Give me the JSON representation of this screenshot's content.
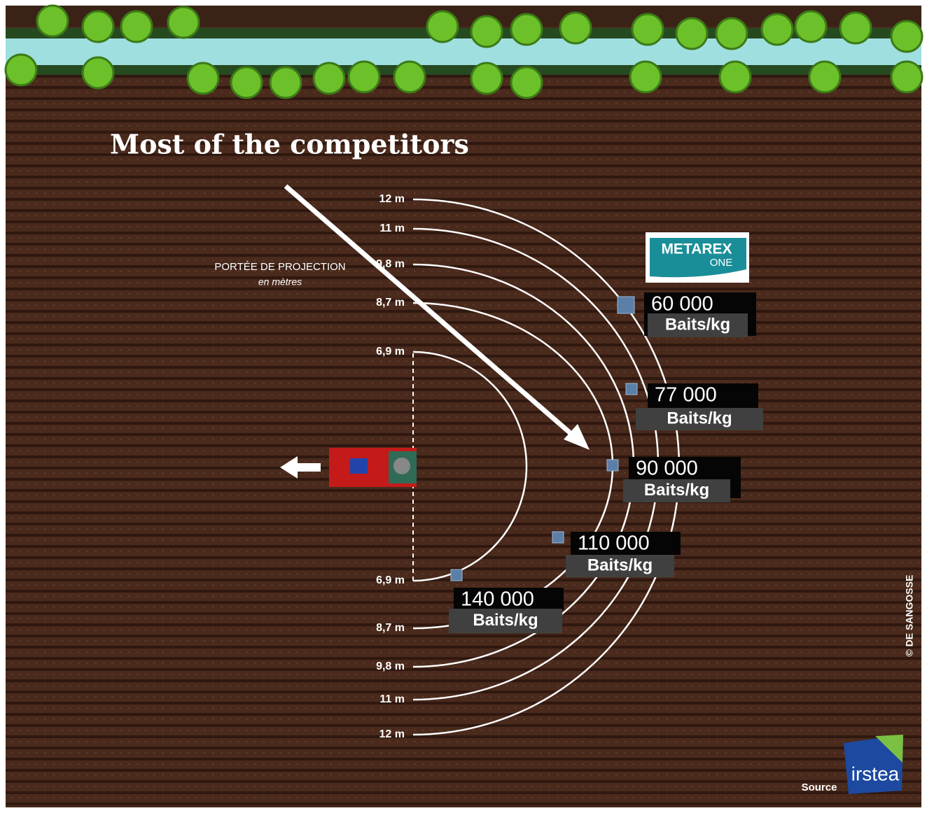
{
  "header": {
    "title": "Most of the competitors"
  },
  "legend": {
    "title": "PORTÉE DE PROJECTION",
    "subtitle": "en mètres"
  },
  "ranges_top": [
    "12 m",
    "11 m",
    "9,8 m",
    "8,7 m",
    "6,9 m"
  ],
  "ranges_bottom": [
    "6,9 m",
    "8,7 m",
    "9,8 m",
    "11 m",
    "12 m"
  ],
  "callouts": [
    {
      "value": "60 000",
      "unit": "Baits/kg"
    },
    {
      "value": "77 000",
      "unit": "Baits/kg"
    },
    {
      "value": "90 000",
      "unit": "Baits/kg"
    },
    {
      "value": "110 000",
      "unit": "Baits/kg"
    },
    {
      "value": "140 000",
      "unit": "Baits/kg"
    }
  ],
  "logo": {
    "brand": "METAREX",
    "line": "ONE"
  },
  "credit": "© DE SANGOSSE",
  "source": {
    "label": "Source",
    "org": "irstea"
  }
}
